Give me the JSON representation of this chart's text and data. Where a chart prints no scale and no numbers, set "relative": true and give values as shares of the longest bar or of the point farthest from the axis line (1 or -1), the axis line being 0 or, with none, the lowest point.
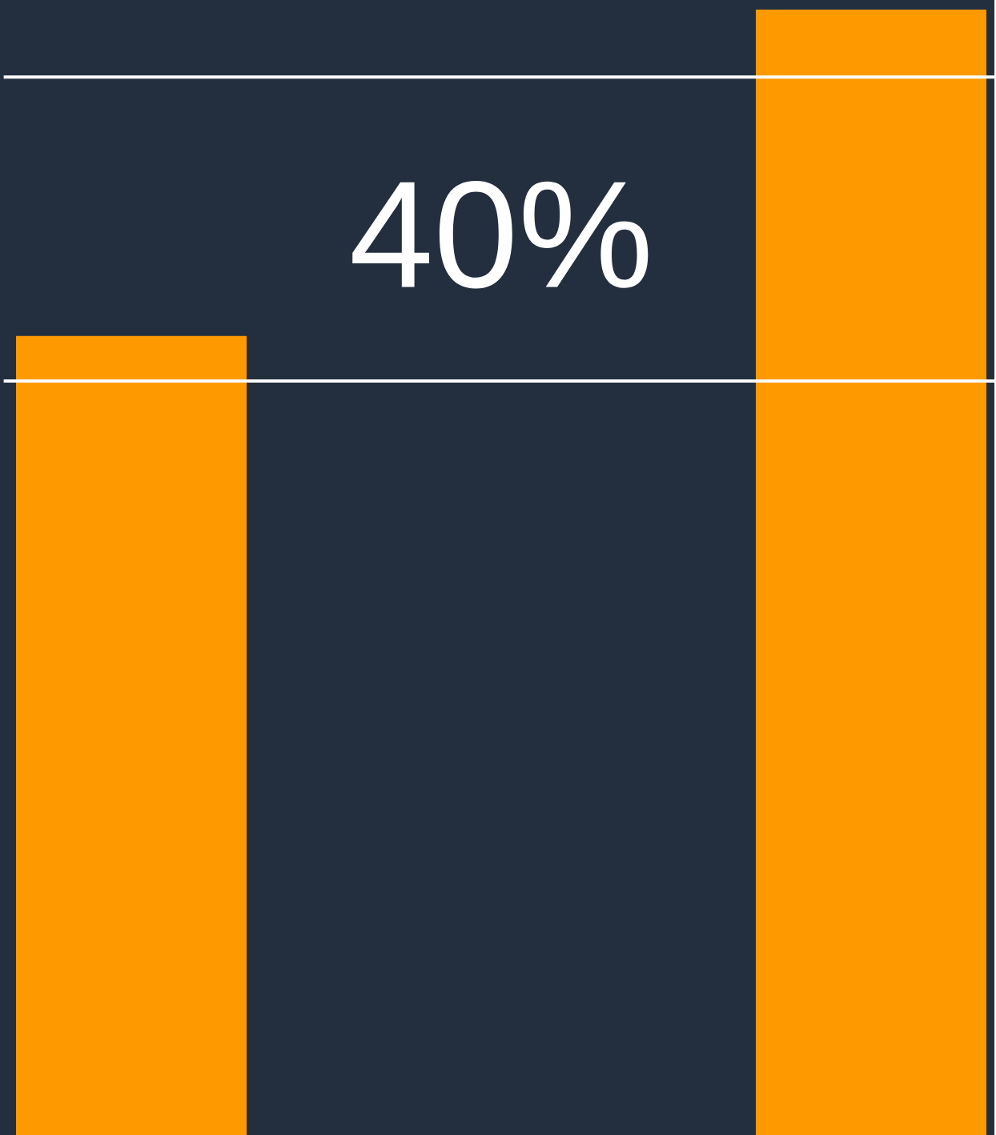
{
  "chart_data": {
    "type": "bar",
    "relative": true,
    "categories": [
      null,
      null
    ],
    "values": [
      0.71,
      1
    ],
    "color": "#ff9900",
    "ref_lines": [
      {
        "axis": "y",
        "value": 0.94,
        "color": "#ffffff"
      },
      {
        "axis": "y",
        "value": 0.67,
        "color": "#ffffff"
      }
    ],
    "annotations": [
      "40%"
    ]
  }
}
